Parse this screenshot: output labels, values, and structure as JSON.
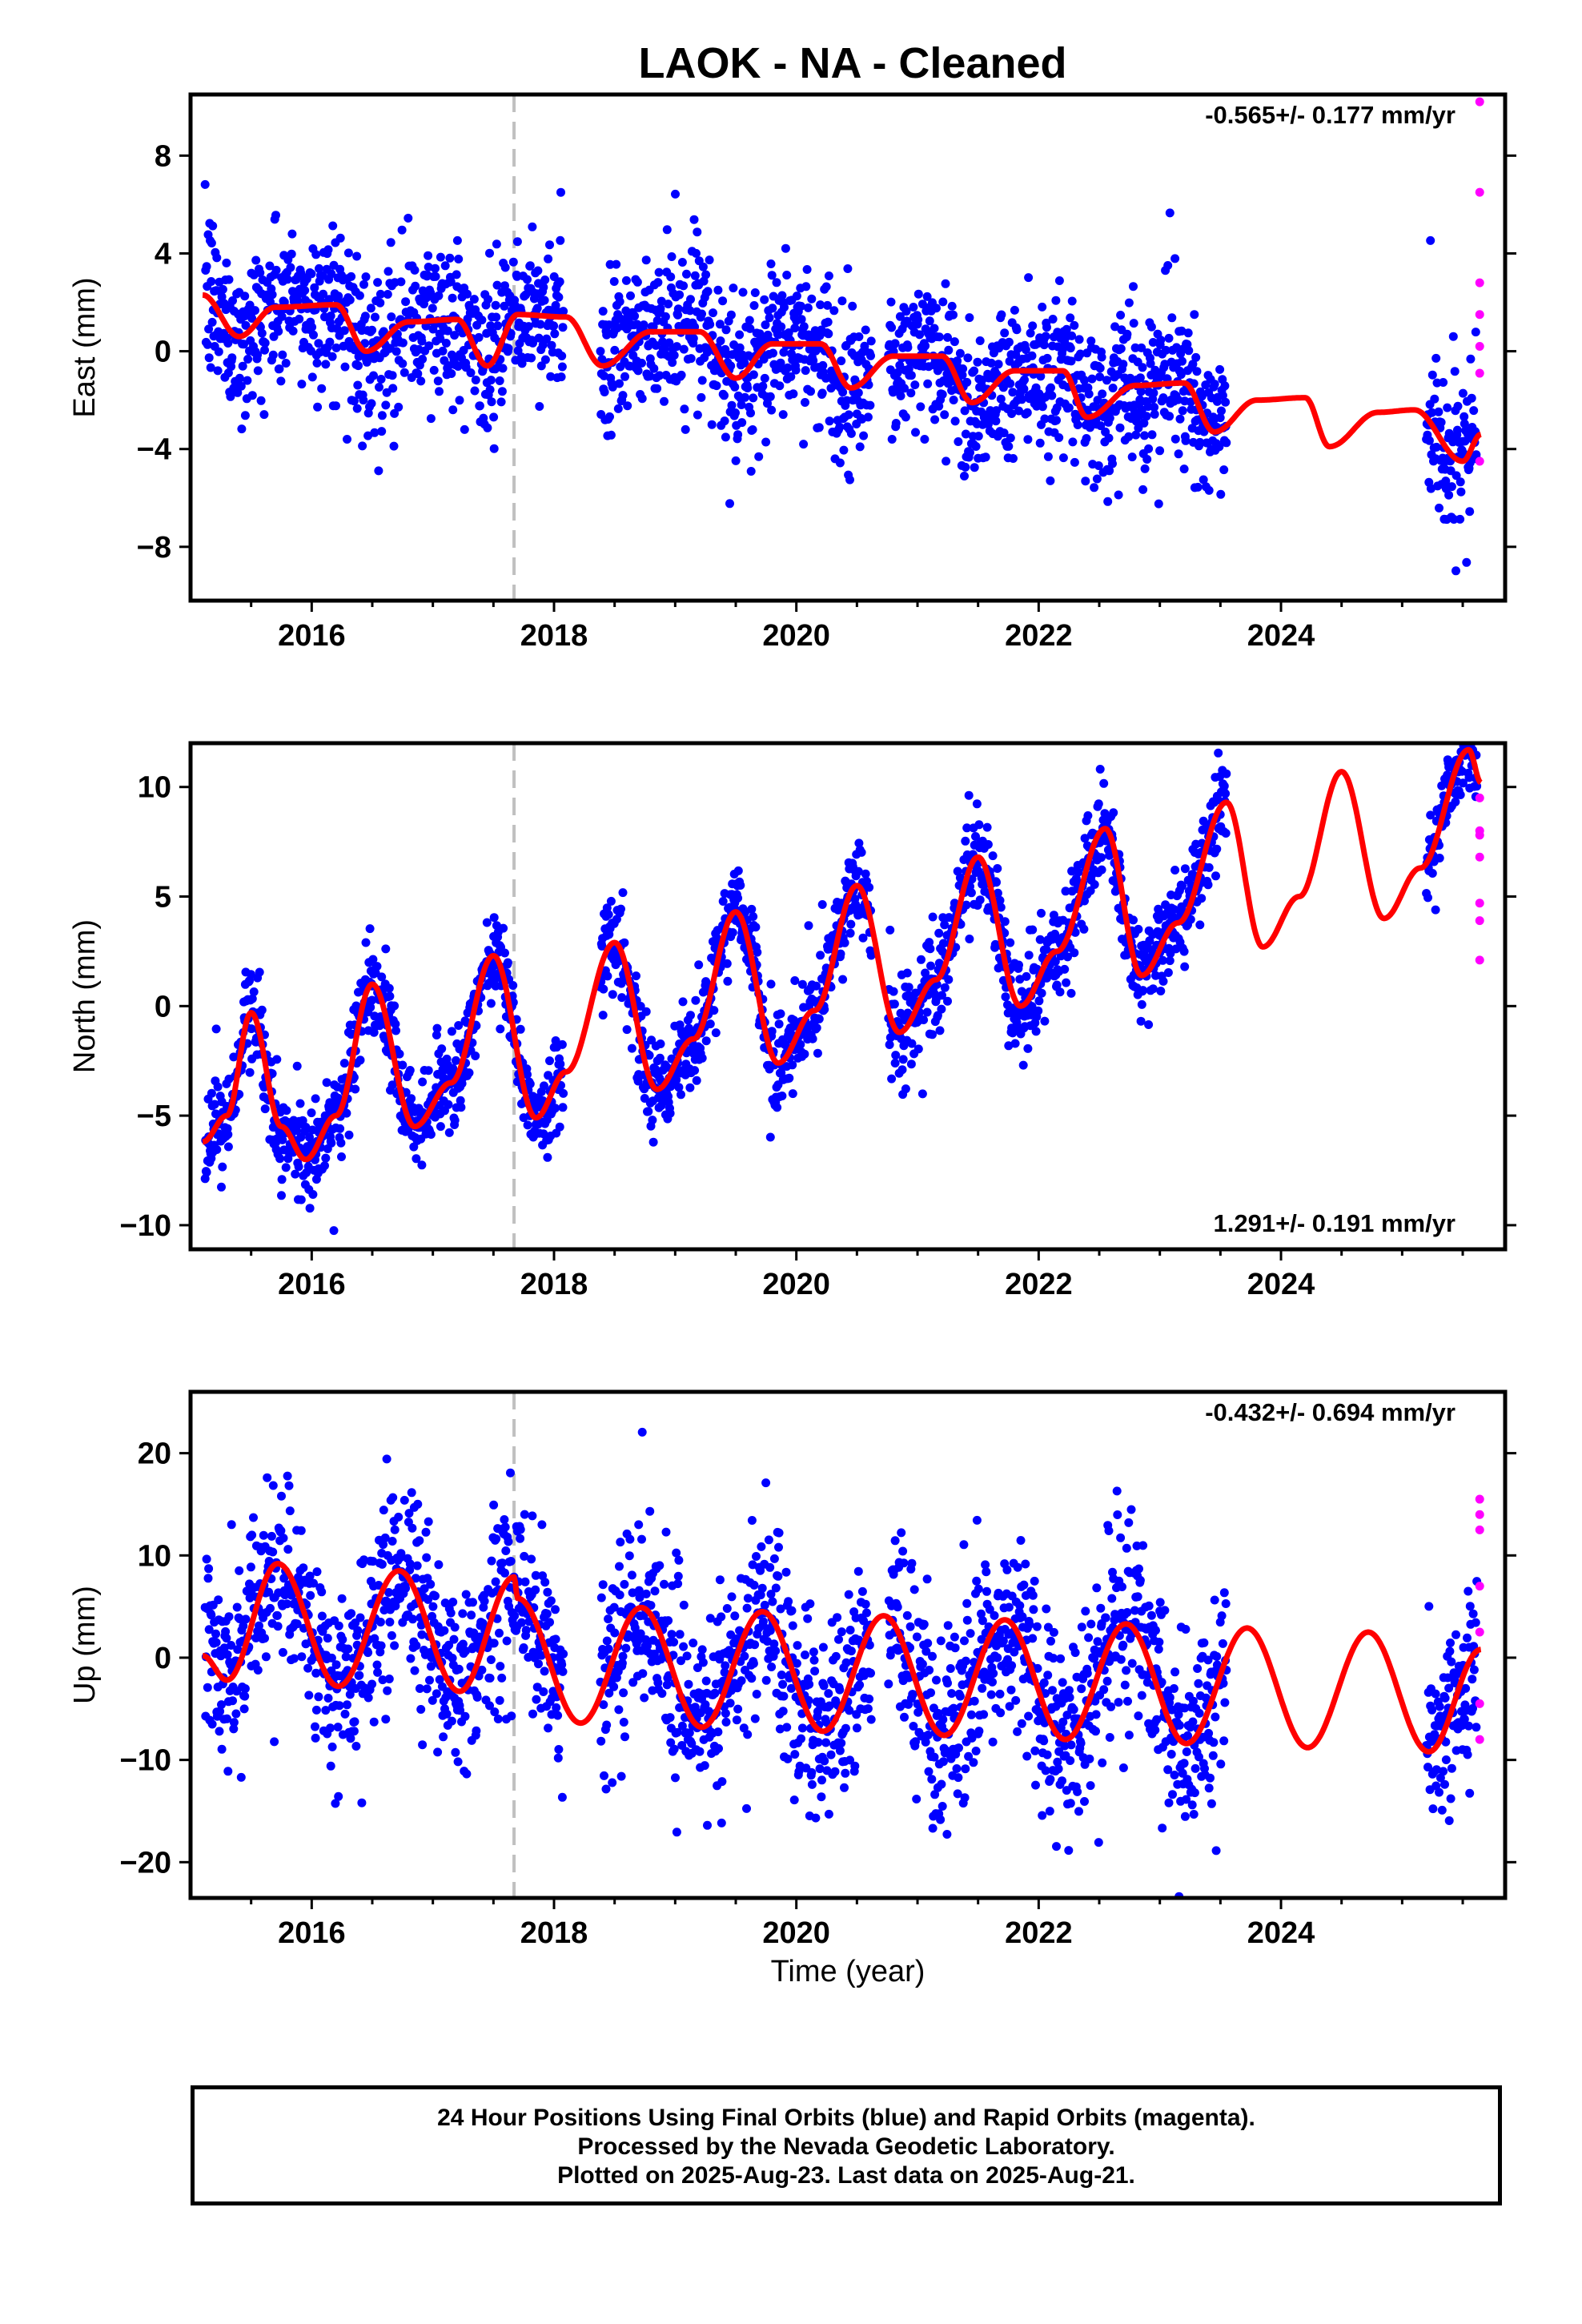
{
  "title": "LAOK  - NA - Cleaned",
  "x_axis_label": "Time (year)",
  "footer": {
    "line1": "24 Hour Positions Using Final Orbits (blue) and Rapid Orbits (magenta).",
    "line2": "Processed by the Nevada Geodetic Laboratory.",
    "line3": "Plotted on 2025-Aug-23. Last data on 2025-Aug-21."
  },
  "colors": {
    "final": "#0000ff",
    "rapid": "#ff00ff",
    "model": "#ff0000",
    "marker": "#c0c0c0",
    "axis": "#000000"
  },
  "chart_data": [
    {
      "type": "scatter",
      "component": "East",
      "ylabel": "East (mm)",
      "rate_label": "-0.565+/- 0.177 mm/yr",
      "rate_position": "top-right",
      "xlim": [
        2015.0,
        2025.85
      ],
      "ylim": [
        -10.2,
        10.5
      ],
      "xticks": [
        2016,
        2018,
        2020,
        2022,
        2024
      ],
      "yticks": [
        8,
        4,
        0,
        -4,
        -8
      ],
      "event_marker_year": 2017.67,
      "data_gap": [
        2023.55,
        2025.2
      ],
      "model_waypoints": {
        "x": [
          2015.1,
          2015.4,
          2015.7,
          2016.2,
          2016.45,
          2016.8,
          2017.2,
          2017.45,
          2017.7,
          2018.1,
          2018.4,
          2018.8,
          2019.2,
          2019.5,
          2019.8,
          2020.2,
          2020.45,
          2020.8,
          2021.2,
          2021.45,
          2021.8,
          2022.2,
          2022.4,
          2022.8,
          2023.2,
          2023.45,
          2023.8,
          2024.2,
          2024.4,
          2024.8,
          2025.1,
          2025.5,
          2025.65
        ],
        "y": [
          2.3,
          0.6,
          1.8,
          1.9,
          0.0,
          1.2,
          1.3,
          -0.6,
          1.5,
          1.4,
          -0.6,
          0.8,
          0.8,
          -1.1,
          0.3,
          0.3,
          -1.5,
          -0.2,
          -0.2,
          -2.1,
          -0.8,
          -0.8,
          -2.7,
          -1.4,
          -1.3,
          -3.3,
          -2.0,
          -1.9,
          -3.9,
          -2.5,
          -2.4,
          -4.5,
          -3.4
        ]
      },
      "final_noise_sd": 1.6,
      "rapid_points": {
        "x": [
          2025.64,
          2025.64,
          2025.64,
          2025.64,
          2025.64,
          2025.64,
          2025.64
        ],
        "y": [
          10.2,
          6.5,
          2.8,
          1.5,
          0.2,
          -0.9,
          -4.5
        ]
      }
    },
    {
      "type": "scatter",
      "component": "North",
      "ylabel": "North (mm)",
      "rate_label": "1.291+/- 0.191 mm/yr",
      "rate_position": "bottom-right",
      "xlim": [
        2015.0,
        2025.85
      ],
      "ylim": [
        -11.1,
        12.0
      ],
      "xticks": [
        2016,
        2018,
        2020,
        2022,
        2024
      ],
      "yticks": [
        10,
        5,
        0,
        -5,
        -10
      ],
      "event_marker_year": 2017.67,
      "data_gap": [
        2023.55,
        2025.2
      ],
      "model_waypoints": {
        "x": [
          2015.1,
          2015.3,
          2015.5,
          2015.75,
          2015.95,
          2016.2,
          2016.5,
          2016.85,
          2017.15,
          2017.5,
          2017.85,
          2018.1,
          2018.5,
          2018.85,
          2019.15,
          2019.5,
          2019.85,
          2020.15,
          2020.5,
          2020.85,
          2021.15,
          2021.5,
          2021.85,
          2022.15,
          2022.55,
          2022.85,
          2023.15,
          2023.55,
          2023.85,
          2024.15,
          2024.5,
          2024.85,
          2025.15,
          2025.55,
          2025.65
        ],
        "y": [
          -6.2,
          -5.0,
          -0.3,
          -5.5,
          -7.0,
          -5.0,
          1.0,
          -5.5,
          -3.5,
          2.3,
          -5.1,
          -3.0,
          2.9,
          -3.8,
          -1.5,
          4.3,
          -2.6,
          -0.2,
          5.5,
          -1.2,
          1.2,
          6.8,
          0.0,
          2.5,
          8.1,
          1.4,
          3.8,
          9.3,
          2.7,
          5.0,
          10.7,
          4.0,
          6.3,
          11.7,
          10.2
        ]
      },
      "final_noise_sd": 1.1,
      "rapid_points": {
        "x": [
          2025.64,
          2025.64,
          2025.64,
          2025.64,
          2025.64,
          2025.64,
          2025.64
        ],
        "y": [
          9.5,
          8.0,
          7.8,
          6.8,
          4.7,
          3.9,
          2.1
        ]
      }
    },
    {
      "type": "scatter",
      "component": "Up",
      "ylabel": "Up (mm)",
      "rate_label": "-0.432+/- 0.694 mm/yr",
      "rate_position": "top-right",
      "xlim": [
        2015.0,
        2025.85
      ],
      "ylim": [
        -23.5,
        26.0
      ],
      "xticks": [
        2016,
        2018,
        2020,
        2022,
        2024
      ],
      "yticks": [
        20,
        10,
        0,
        -10,
        -20
      ],
      "event_marker_year": 2017.67,
      "data_gap": [
        2023.55,
        2025.2
      ],
      "model_waypoints": {
        "x": [
          2015.1,
          2015.3,
          2015.72,
          2016.22,
          2016.72,
          2017.22,
          2017.67,
          2017.7,
          2018.22,
          2018.72,
          2019.22,
          2019.72,
          2020.22,
          2020.72,
          2021.22,
          2021.72,
          2022.22,
          2022.72,
          2023.22,
          2023.72,
          2024.22,
          2024.72,
          2025.22,
          2025.65
        ],
        "y": [
          0.2,
          -2.2,
          9.2,
          -2.8,
          8.5,
          -3.3,
          7.9,
          5.8,
          -6.4,
          4.9,
          -6.8,
          4.5,
          -7.2,
          4.1,
          -7.6,
          3.7,
          -8.0,
          3.3,
          -8.4,
          2.9,
          -8.8,
          2.5,
          -9.2,
          0.8
        ]
      },
      "final_noise_sd": 4.8,
      "rapid_points": {
        "x": [
          2025.64,
          2025.64,
          2025.64,
          2025.64,
          2025.64,
          2025.64,
          2025.64
        ],
        "y": [
          15.5,
          14.0,
          12.5,
          7.0,
          2.5,
          -4.5,
          -8.0
        ]
      }
    }
  ]
}
